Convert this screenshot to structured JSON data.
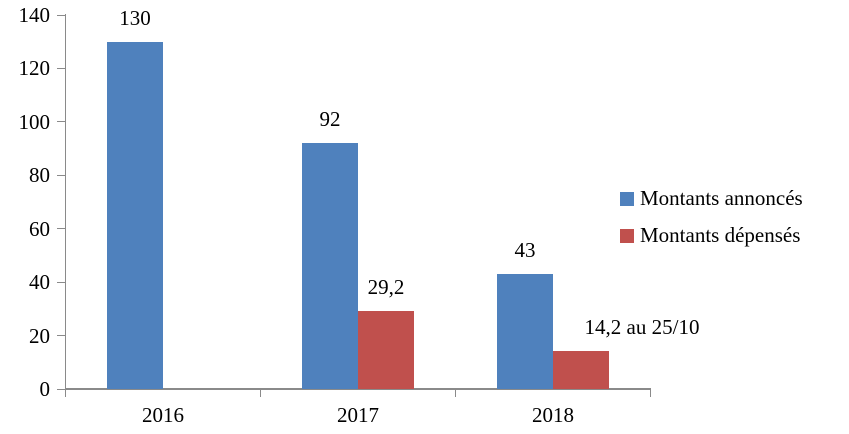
{
  "chart_data": {
    "type": "bar",
    "title": "",
    "categories": [
      "2016",
      "2017",
      "2018"
    ],
    "series": [
      {
        "name": "Montants annoncés",
        "color": "#4F81BD",
        "values": [
          130,
          92,
          43
        ],
        "value_labels": [
          "130",
          "92",
          "43"
        ]
      },
      {
        "name": "Montants dépensés",
        "color": "#C0504D",
        "values": [
          null,
          29.2,
          14.2
        ],
        "value_labels": [
          "",
          "29,2",
          "14,2 au 25/10"
        ]
      }
    ],
    "ylim": [
      0,
      140
    ],
    "yticks": [
      0,
      20,
      40,
      60,
      80,
      100,
      120,
      140
    ],
    "ytick_labels": [
      "0",
      "20",
      "40",
      "60",
      "80",
      "100",
      "120",
      "140"
    ],
    "grid": false,
    "legend_position": "right",
    "colors": {
      "axis": "#8a8a8a",
      "text": "#000000",
      "background": "#ffffff"
    }
  }
}
